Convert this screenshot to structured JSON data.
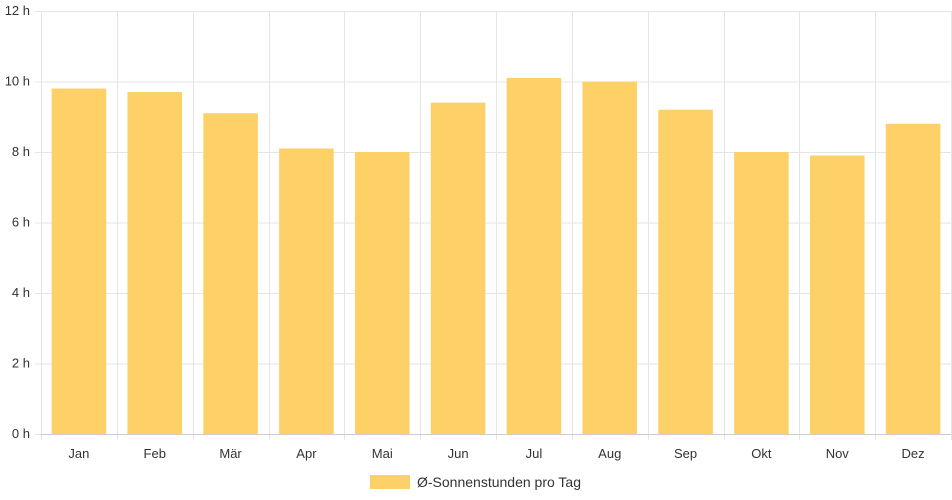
{
  "chart_data": {
    "type": "bar",
    "categories": [
      "Jan",
      "Feb",
      "Mär",
      "Apr",
      "Mai",
      "Jun",
      "Jul",
      "Aug",
      "Sep",
      "Okt",
      "Nov",
      "Dez"
    ],
    "series": [
      {
        "name": "Ø-Sonnenstunden pro Tag",
        "values": [
          9.8,
          9.7,
          9.1,
          8.1,
          8.0,
          9.4,
          10.1,
          10.0,
          9.2,
          8.0,
          7.9,
          8.8
        ],
        "color": "#fdd068"
      }
    ],
    "title": "",
    "xlabel": "",
    "ylabel": "",
    "ylim": [
      0,
      12
    ],
    "yticks": [
      "0 h",
      "2 h",
      "4 h",
      "6 h",
      "8 h",
      "10 h",
      "12 h"
    ],
    "grid": true,
    "legend_position": "bottom"
  },
  "colors": {
    "grid": "#e5e5e5",
    "axis": "#cccccc",
    "text": "#333333"
  }
}
